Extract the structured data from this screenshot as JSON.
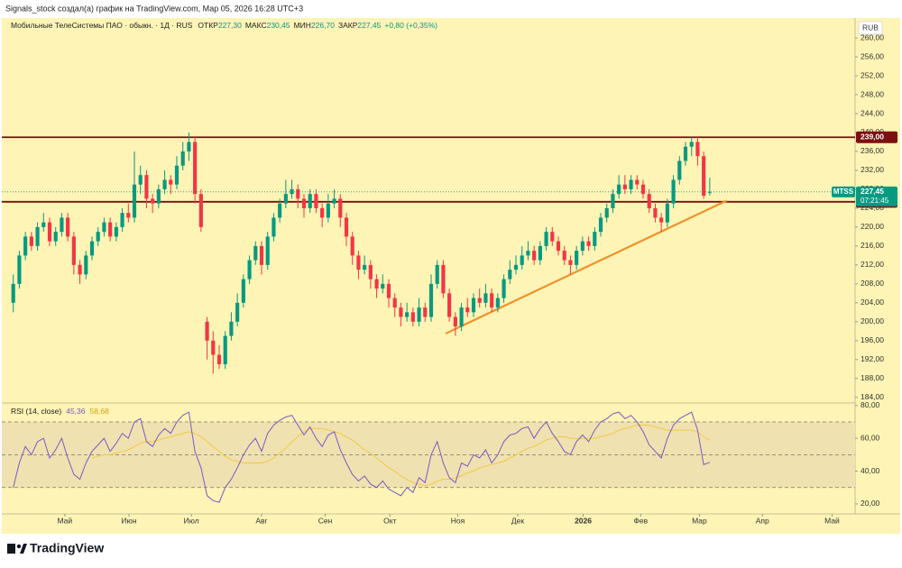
{
  "chart_data": {
    "type": "candlestick",
    "caption": "Signals_stock создал(а) график на TradingView.com, Мар 05, 2026 16:28 UTC+3",
    "title": "Мобильные ТелеСистемы ПАО · обыкн. · 1Д · RUS",
    "ohlc_labels": [
      "ОТКР",
      "МАКС",
      "МИН",
      "ЗАКР"
    ],
    "ohlc_value_labels": [
      "227,30",
      "230,45",
      "226,70",
      "227,45"
    ],
    "change_label": "+0,80 (+0,35%)",
    "currency": "RUB",
    "brand": "TradingView",
    "up_color": "#089981",
    "down_color": "#f23645",
    "candles": [
      [
        204,
        210,
        202,
        208
      ],
      [
        208,
        215,
        207,
        214
      ],
      [
        214,
        219,
        213,
        218
      ],
      [
        218,
        219,
        215,
        216
      ],
      [
        216,
        221,
        215,
        220
      ],
      [
        220,
        223,
        219,
        221
      ],
      [
        221,
        222,
        216,
        217
      ],
      [
        217,
        220,
        216,
        219
      ],
      [
        219,
        223,
        218,
        222
      ],
      [
        222,
        223,
        217,
        218
      ],
      [
        218,
        219,
        210,
        212
      ],
      [
        212,
        213,
        208,
        210
      ],
      [
        210,
        215,
        209,
        214
      ],
      [
        214,
        218,
        213,
        217
      ],
      [
        217,
        220,
        216,
        219
      ],
      [
        219,
        222,
        218,
        221
      ],
      [
        221,
        222,
        217,
        218
      ],
      [
        218,
        221,
        217,
        220
      ],
      [
        220,
        224,
        219,
        223
      ],
      [
        223,
        225,
        221,
        222
      ],
      [
        222,
        236,
        221,
        229
      ],
      [
        229,
        233,
        227,
        231
      ],
      [
        231,
        232,
        224,
        226
      ],
      [
        226,
        227,
        223,
        225
      ],
      [
        225,
        229,
        224,
        228
      ],
      [
        228,
        232,
        227,
        230
      ],
      [
        230,
        231,
        227,
        229
      ],
      [
        229,
        235,
        228,
        233
      ],
      [
        233,
        238,
        232,
        236
      ],
      [
        236,
        240,
        234,
        238
      ],
      [
        238,
        239,
        225,
        227
      ],
      [
        227,
        228,
        219,
        220
      ],
      [
        200,
        201,
        192,
        196
      ],
      [
        196,
        198,
        189,
        193
      ],
      [
        193,
        195,
        190,
        191
      ],
      [
        191,
        198,
        190,
        197
      ],
      [
        197,
        202,
        196,
        200
      ],
      [
        200,
        206,
        199,
        204
      ],
      [
        204,
        210,
        203,
        209
      ],
      [
        209,
        214,
        208,
        213
      ],
      [
        213,
        217,
        212,
        216
      ],
      [
        216,
        217,
        210,
        212
      ],
      [
        212,
        219,
        211,
        218
      ],
      [
        218,
        223,
        217,
        222
      ],
      [
        222,
        226,
        221,
        225
      ],
      [
        225,
        230,
        224,
        227
      ],
      [
        227,
        230,
        226,
        228
      ],
      [
        228,
        229,
        224,
        226
      ],
      [
        226,
        227,
        222,
        224
      ],
      [
        224,
        228,
        223,
        227
      ],
      [
        227,
        228,
        223,
        224
      ],
      [
        224,
        225,
        220,
        222
      ],
      [
        222,
        227,
        221,
        225
      ],
      [
        225,
        228,
        224,
        226
      ],
      [
        226,
        227,
        220,
        222
      ],
      [
        222,
        223,
        216,
        218
      ],
      [
        218,
        219,
        212,
        214
      ],
      [
        214,
        215,
        209,
        211
      ],
      [
        211,
        214,
        210,
        212
      ],
      [
        212,
        213,
        207,
        209
      ],
      [
        209,
        210,
        205,
        207
      ],
      [
        207,
        210,
        206,
        208
      ],
      [
        208,
        209,
        203,
        205
      ],
      [
        205,
        206,
        201,
        203
      ],
      [
        203,
        204,
        199,
        201
      ],
      [
        201,
        204,
        200,
        202
      ],
      [
        202,
        203,
        199,
        200
      ],
      [
        200,
        205,
        199,
        203
      ],
      [
        203,
        204,
        200,
        201
      ],
      [
        201,
        210,
        200,
        208
      ],
      [
        208,
        213,
        207,
        212
      ],
      [
        212,
        213,
        205,
        206
      ],
      [
        206,
        207,
        200,
        201
      ],
      [
        201,
        202,
        197,
        199
      ],
      [
        199,
        204,
        198,
        203
      ],
      [
        203,
        205,
        201,
        202
      ],
      [
        202,
        206,
        201,
        205
      ],
      [
        205,
        207,
        203,
        204
      ],
      [
        204,
        208,
        203,
        206
      ],
      [
        206,
        207,
        202,
        203
      ],
      [
        203,
        206,
        202,
        205
      ],
      [
        205,
        210,
        204,
        209
      ],
      [
        209,
        213,
        208,
        211
      ],
      [
        211,
        214,
        210,
        212
      ],
      [
        212,
        216,
        211,
        214
      ],
      [
        214,
        217,
        213,
        215
      ],
      [
        215,
        216,
        212,
        213
      ],
      [
        213,
        217,
        212,
        216
      ],
      [
        216,
        220,
        215,
        219
      ],
      [
        219,
        220,
        216,
        217
      ],
      [
        217,
        218,
        214,
        215
      ],
      [
        215,
        216,
        212,
        213
      ],
      [
        213,
        214,
        210,
        212
      ],
      [
        212,
        216,
        211,
        215
      ],
      [
        215,
        218,
        214,
        217
      ],
      [
        217,
        218,
        215,
        216
      ],
      [
        216,
        220,
        215,
        219
      ],
      [
        219,
        223,
        218,
        222
      ],
      [
        222,
        225,
        221,
        224
      ],
      [
        224,
        228,
        223,
        227
      ],
      [
        227,
        231,
        226,
        229
      ],
      [
        229,
        231,
        227,
        228
      ],
      [
        228,
        231,
        227,
        230
      ],
      [
        230,
        231,
        228,
        229
      ],
      [
        229,
        230,
        226,
        227
      ],
      [
        227,
        228,
        223,
        224
      ],
      [
        224,
        225,
        221,
        222
      ],
      [
        222,
        223,
        219,
        221
      ],
      [
        221,
        226,
        220,
        225
      ],
      [
        225,
        231,
        224,
        230
      ],
      [
        230,
        235,
        229,
        234
      ],
      [
        234,
        238,
        233,
        237
      ],
      [
        237,
        239,
        235,
        238
      ],
      [
        238,
        239,
        233,
        235
      ],
      [
        235,
        236,
        226,
        226.65
      ],
      [
        227.3,
        230.45,
        226.7,
        227.45
      ]
    ],
    "xlim": [
      -1,
      139
    ],
    "xticks": [
      {
        "value": 8.5,
        "label": "Май"
      },
      {
        "value": 19.1,
        "label": "Июн"
      },
      {
        "value": 29.4,
        "label": "Июл"
      },
      {
        "value": 41,
        "label": "Авг"
      },
      {
        "value": 51.5,
        "label": "Сен"
      },
      {
        "value": 62.2,
        "label": "Окт"
      },
      {
        "value": 73.4,
        "label": "Ноя"
      },
      {
        "value": 83.3,
        "label": "Дек"
      },
      2026,
      {
        "value": 103.6,
        "label": "Фев"
      },
      {
        "value": 113.3,
        "label": "Мар"
      },
      {
        "value": 123.7,
        "label": "Апр"
      },
      {
        "value": 135.2,
        "label": "Май"
      }
    ],
    "year_tick_position": 94.1,
    "ylim": [
      183,
      262.3
    ],
    "yticks": [
      {
        "value": 184,
        "label": "184,00"
      },
      {
        "value": 188,
        "label": "188,00"
      },
      {
        "value": 192,
        "label": "192,00"
      },
      {
        "value": 196,
        "label": "196,00"
      },
      {
        "value": 200,
        "label": "200,00"
      },
      {
        "value": 204,
        "label": "204,00"
      },
      {
        "value": 208,
        "label": "208,00"
      },
      {
        "value": 212,
        "label": "212,00"
      },
      {
        "value": 216,
        "label": "216,00"
      },
      {
        "value": 220,
        "label": "220,00"
      },
      {
        "value": 224,
        "label": "224,00"
      },
      {
        "value": 228,
        "label": "228,00"
      },
      {
        "value": 232,
        "label": "232,00"
      },
      {
        "value": 236,
        "label": "236,00"
      },
      {
        "value": 240,
        "label": "240,00"
      },
      {
        "value": 244,
        "label": "244,00"
      },
      {
        "value": 248,
        "label": "248,00"
      },
      {
        "value": 252,
        "label": "252,00"
      },
      {
        "value": 256,
        "label": "256,00"
      },
      {
        "value": 260,
        "label": "260,00"
      }
    ],
    "hlines": [
      {
        "value": 239,
        "label": "239,00"
      },
      {
        "value": 225.35,
        "label": "225,35"
      }
    ],
    "hline_color": "#7a1010",
    "trendline": {
      "x": [
        71.4,
        117.8
      ],
      "y": [
        197.5,
        225.6
      ],
      "color": "#f0922b"
    },
    "last_price": {
      "symbol": "MTSS",
      "label": "227,45",
      "countdown": "07:21:45"
    },
    "rsi": {
      "title": "RSI (14, close)",
      "color": "#7e57c2",
      "ma_color": "#f5c842",
      "values": [
        30,
        45,
        55,
        50,
        58,
        60,
        48,
        53,
        60,
        48,
        38,
        35,
        45,
        52,
        56,
        60,
        52,
        57,
        63,
        60,
        70,
        72,
        58,
        55,
        62,
        66,
        63,
        70,
        74,
        76,
        52,
        42,
        25,
        22,
        21,
        30,
        35,
        42,
        50,
        56,
        60,
        52,
        63,
        68,
        71,
        73,
        74,
        68,
        62,
        67,
        60,
        55,
        62,
        64,
        53,
        45,
        38,
        34,
        37,
        32,
        30,
        34,
        29,
        27,
        25,
        30,
        27,
        36,
        33,
        50,
        58,
        45,
        36,
        33,
        45,
        43,
        50,
        48,
        53,
        45,
        50,
        58,
        62,
        63,
        66,
        67,
        60,
        66,
        70,
        63,
        58,
        52,
        50,
        58,
        62,
        58,
        65,
        70,
        72,
        75,
        76,
        72,
        74,
        70,
        64,
        56,
        52,
        48,
        60,
        68,
        72,
        74,
        76,
        65,
        44,
        45.36
      ],
      "value_label": "45,36",
      "ma_values": [
        null,
        null,
        null,
        null,
        null,
        null,
        null,
        null,
        null,
        null,
        null,
        null,
        null,
        48,
        49,
        50,
        50,
        51,
        52,
        53,
        55,
        57,
        58,
        58,
        59,
        60,
        61,
        62,
        63,
        64,
        63,
        61,
        58,
        55,
        52,
        49,
        47,
        46,
        45,
        45,
        45,
        45,
        46,
        48,
        51,
        54,
        58,
        61,
        64,
        66,
        66,
        66,
        65,
        64,
        63,
        61,
        59,
        56,
        53,
        51,
        48,
        45,
        42,
        40,
        37,
        35,
        33,
        32,
        31,
        32,
        34,
        35,
        35,
        36,
        37,
        39,
        40,
        42,
        43,
        44,
        45,
        46,
        48,
        50,
        52,
        54,
        55,
        57,
        59,
        60,
        61,
        61,
        60,
        60,
        60,
        60,
        60,
        61,
        62,
        63,
        65,
        66,
        67,
        68,
        68,
        68,
        67,
        66,
        65,
        65,
        65,
        65,
        65,
        64,
        61,
        58.68
      ],
      "ma_value_label": "58,68",
      "ylim": [
        15,
        81
      ],
      "levels": [
        30,
        50,
        70
      ],
      "yticks": [
        {
          "value": 20,
          "label": "20,00"
        },
        {
          "value": 40,
          "label": "40,00"
        },
        {
          "value": 60,
          "label": "60,00"
        },
        {
          "value": 80,
          "label": "80,00"
        }
      ]
    }
  }
}
